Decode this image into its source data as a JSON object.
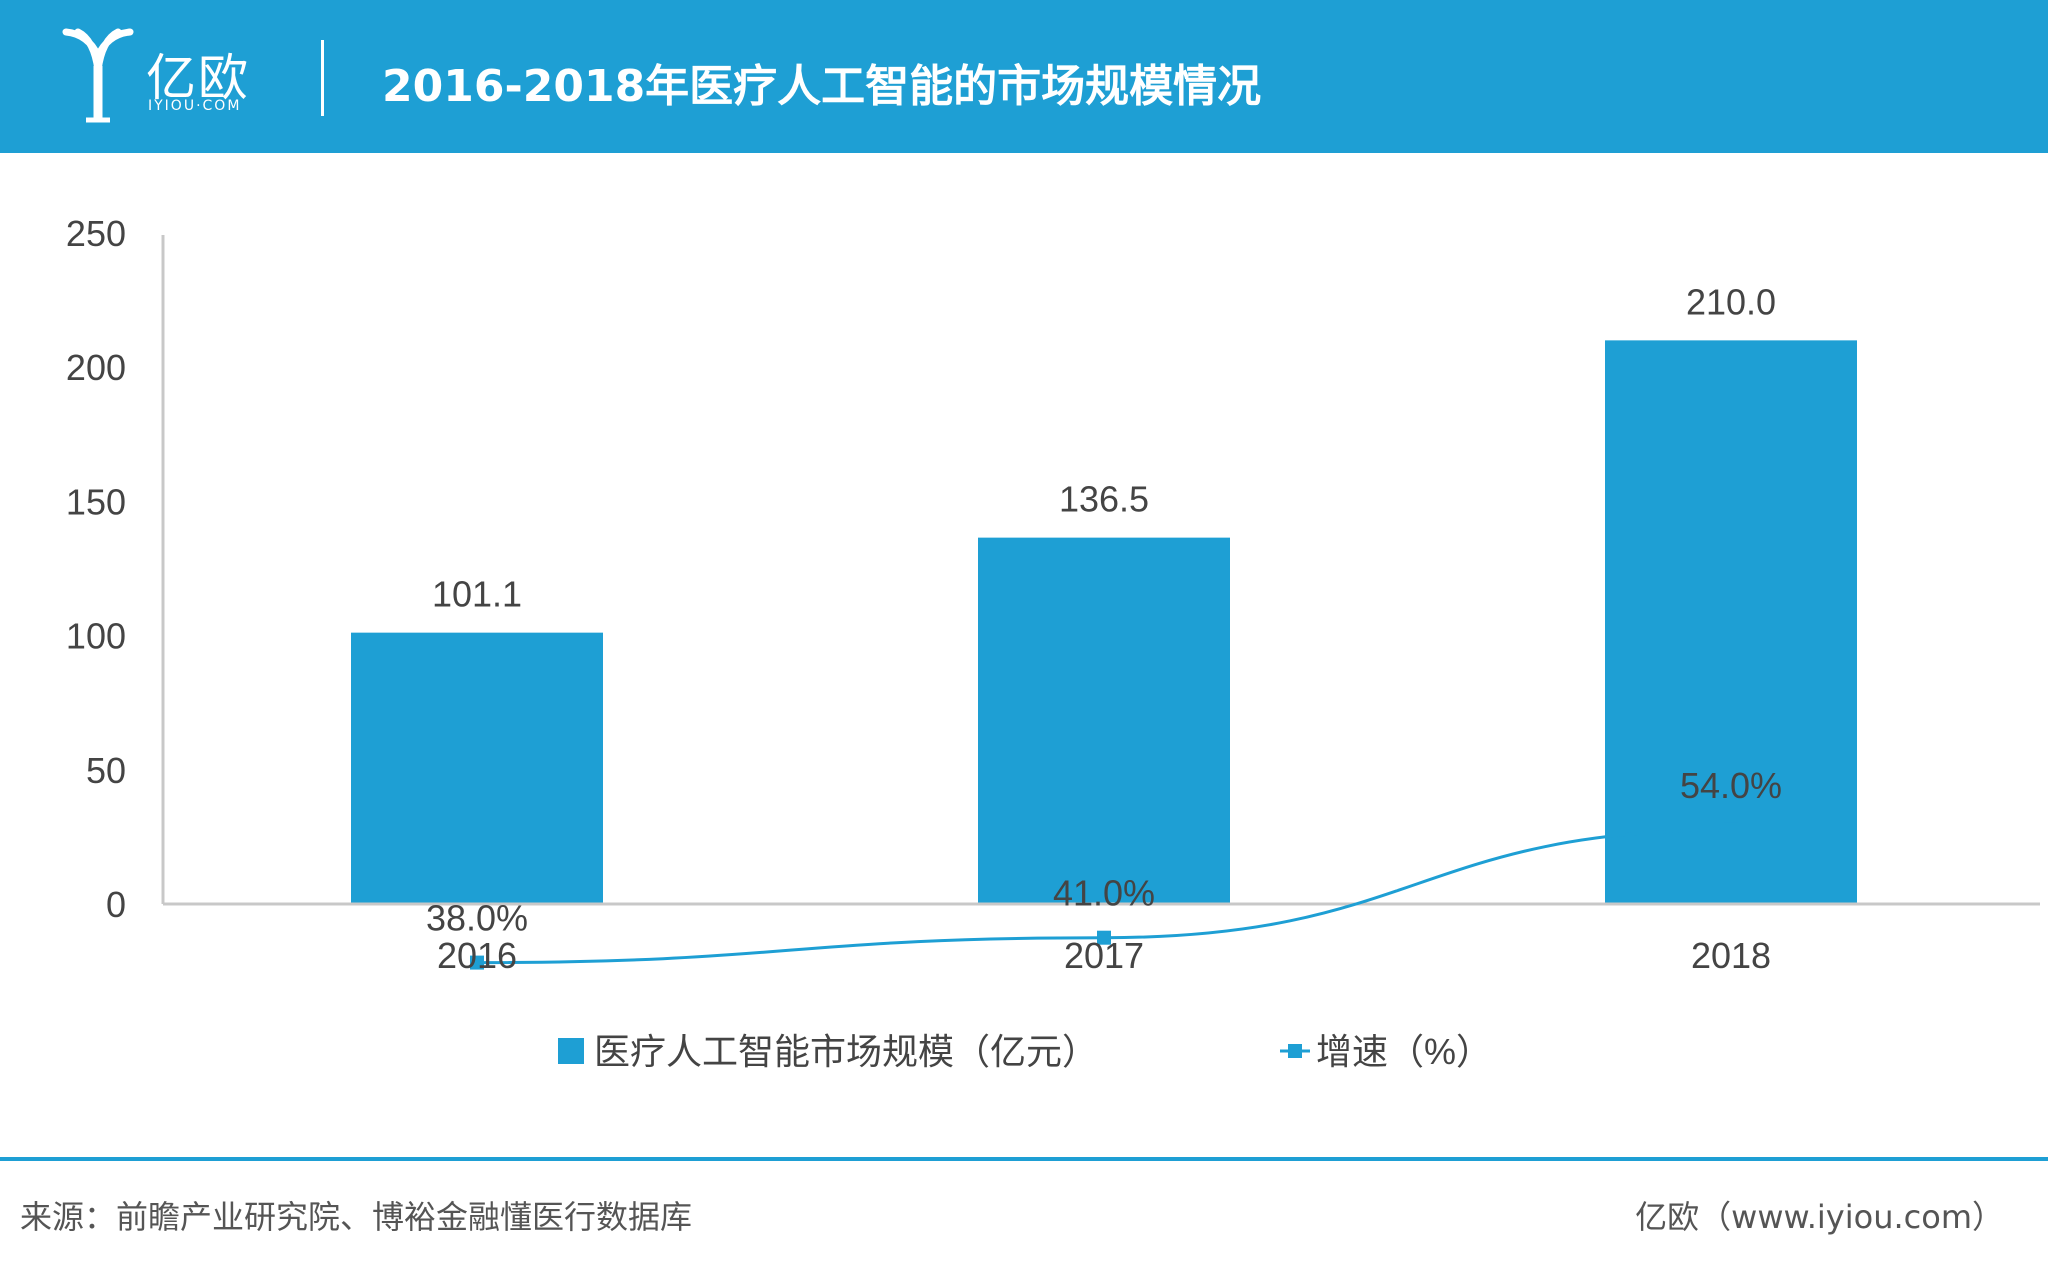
{
  "header": {
    "brand": "亿欧",
    "brand_url": "IYIOU·COM",
    "title": "2016-2018年医疗人工智能的市场规模情况",
    "background_color": "#1e9fd4"
  },
  "chart_data": {
    "type": "bar",
    "categories": [
      "2016",
      "2017",
      "2018"
    ],
    "ylim": [
      0,
      250
    ],
    "yticks": [
      "0",
      "50",
      "100",
      "150",
      "200",
      "250"
    ],
    "grid": false,
    "legend_position": "bottom",
    "series": [
      {
        "name": "医疗人工智能市场规模（亿元）",
        "type": "bar",
        "values": [
          101.1,
          136.5,
          210.0
        ],
        "labels": [
          "101.1",
          "136.5",
          "210.0"
        ],
        "color": "#1e9fd4"
      },
      {
        "name": "增速（%）",
        "type": "line",
        "values": [
          38.0,
          41.0,
          54.0
        ],
        "labels": [
          "38.0%",
          "41.0%",
          "54.0%"
        ],
        "color": "#1e9fd4"
      }
    ]
  },
  "footer": {
    "source": "来源：前瞻产业研究院、博裕金融懂医行数据库",
    "site": "亿欧（www.iyiou.com）",
    "rule_color": "#1e9fd4"
  }
}
